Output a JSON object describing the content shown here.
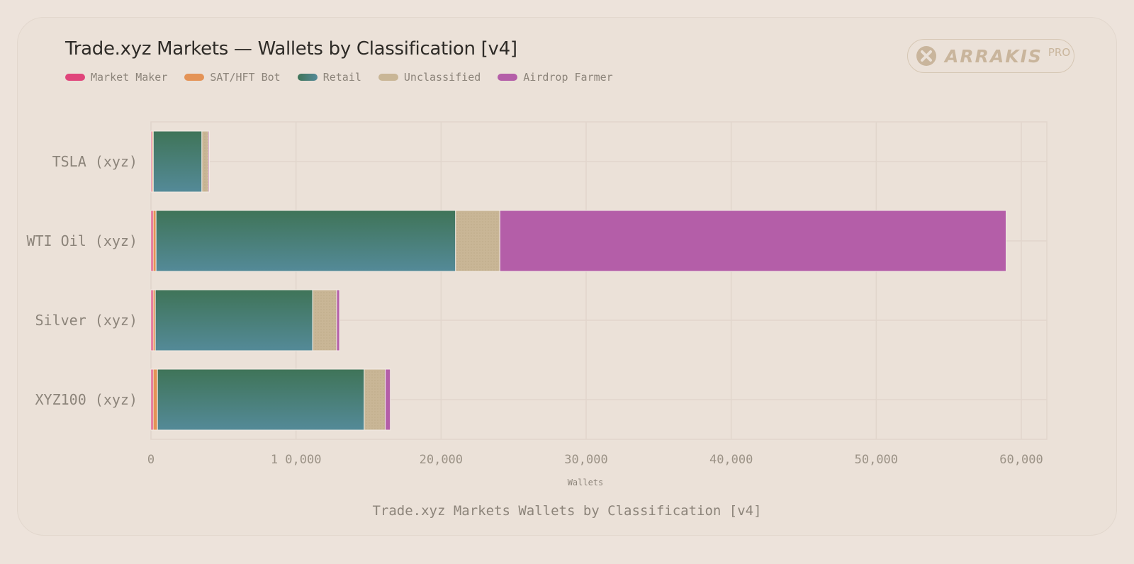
{
  "header": {
    "title": "Trade.xyz Markets — Wallets by Classification [v4]"
  },
  "logo": {
    "wordmark": "ARRAKIS",
    "badge": "PRO",
    "icon": "arrakis-x-icon"
  },
  "caption": "Trade.xyz Markets Wallets by Classification [v4]",
  "colors": {
    "market_maker": "#e0457b",
    "sat_hft_bot": "#e49356",
    "retail_top": "#3f7458",
    "retail_bottom": "#548a98",
    "unclassified": "#c9b696",
    "airdrop_farmer": "#b45ea8",
    "grid": "#e1d6cc"
  },
  "chart_data": {
    "type": "bar",
    "orientation": "horizontal",
    "stacked": true,
    "title": "Trade.xyz Markets — Wallets by Classification [v4]",
    "xlabel": "Wallets",
    "ylabel": "",
    "xlim": [
      0,
      62000
    ],
    "x_ticks": [
      0,
      10000,
      20000,
      30000,
      40000,
      50000,
      60000
    ],
    "x_tick_labels": [
      "0",
      "1 0,000",
      "20,000",
      "30,000",
      "40,000",
      "50,000",
      "60,000"
    ],
    "grid": true,
    "legend_position": "top-left",
    "categories": [
      "TSLA (xyz)",
      "WTI Oil (xyz)",
      "Silver (xyz)",
      "XYZ100 (xyz)"
    ],
    "series": [
      {
        "name": "Market Maker",
        "color_key": "market_maker",
        "values": [
          80,
          150,
          150,
          150
        ]
      },
      {
        "name": "SAT/HFT Bot",
        "color_key": "sat_hft_bot",
        "values": [
          80,
          200,
          150,
          300
        ]
      },
      {
        "name": "Retail",
        "color_key": "retail_top",
        "values": [
          3350,
          20650,
          10850,
          14250
        ]
      },
      {
        "name": "Unclassified",
        "color_key": "unclassified",
        "values": [
          450,
          3050,
          1650,
          1450
        ]
      },
      {
        "name": "Airdrop Farmer",
        "color_key": "airdrop_farmer",
        "values": [
          70,
          34900,
          200,
          350
        ]
      }
    ]
  }
}
